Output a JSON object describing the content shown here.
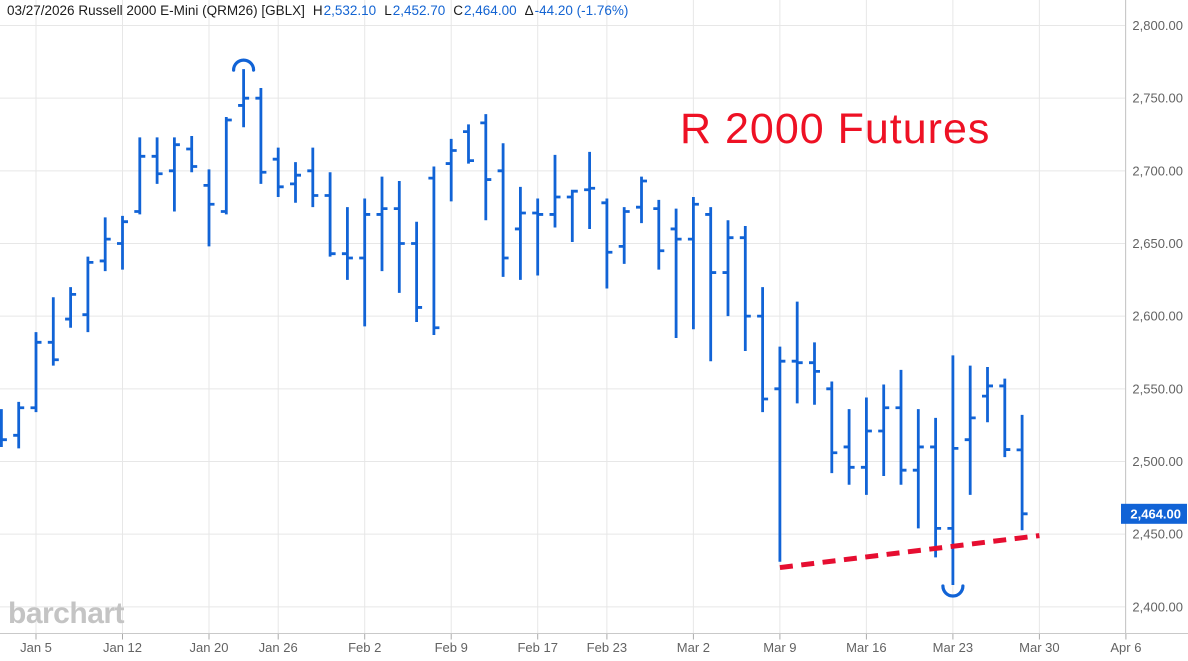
{
  "header": {
    "prefix": "03/27/2026 Russell 2000 E-Mini (QRM26) [GBLX]",
    "high_label": "H",
    "high": "2,532.10",
    "low_label": "L",
    "low": "2,452.70",
    "close_label": "C",
    "close": "2,464.00",
    "change_label": "Δ",
    "change": "-44.20 (-1.76%)"
  },
  "watermark": "barchart",
  "colors": {
    "bar_blue": "#1163d6",
    "price_box_blue": "#1163d6",
    "price_box_text": "#ffffff",
    "annotation_red": "#ee1124",
    "trendline_red": "#e60e31",
    "grid": "#e7e7e7",
    "spine": "#c9c9c9",
    "tick": "#ababab",
    "axis_text": "#636363",
    "header_value_blue": "#1464d2",
    "watermark_gray": "#c4c4c4"
  },
  "chart_data": {
    "type": "bar",
    "subtype": "ohlc-daily-bars",
    "instrument": "Russell 2000 E-Mini (QRM26) [GBLX]",
    "session_date": "03/27/2026",
    "annotation": {
      "text": "R 2000 Futures"
    },
    "grid": true,
    "y_axis_side": "right",
    "y_axis_range": [
      2400,
      2800
    ],
    "last_price": {
      "value": 2464.0,
      "label": "2,464.00"
    },
    "y_ticks": [
      {
        "value": 2800,
        "label": "2,800.00"
      },
      {
        "value": 2750,
        "label": "2,750.00"
      },
      {
        "value": 2700,
        "label": "2,700.00"
      },
      {
        "value": 2650,
        "label": "2,650.00"
      },
      {
        "value": 2600,
        "label": "2,600.00"
      },
      {
        "value": 2550,
        "label": "2,550.00"
      },
      {
        "value": 2500,
        "label": "2,500.00"
      },
      {
        "value": 2450,
        "label": "2,450.00"
      },
      {
        "value": 2400,
        "label": "2,400.00"
      }
    ],
    "x_ticks": [
      {
        "label": "Jan 5",
        "bar_index": 2
      },
      {
        "label": "Jan 12",
        "bar_index": 7
      },
      {
        "label": "Jan 20",
        "bar_index": 12
      },
      {
        "label": "Jan 26",
        "bar_index": 16
      },
      {
        "label": "Feb 2",
        "bar_index": 21
      },
      {
        "label": "Feb 9",
        "bar_index": 26
      },
      {
        "label": "Feb 17",
        "bar_index": 31
      },
      {
        "label": "Feb 23",
        "bar_index": 35
      },
      {
        "label": "Mar 2",
        "bar_index": 40
      },
      {
        "label": "Mar 9",
        "bar_index": 45
      },
      {
        "label": "Mar 16",
        "bar_index": 50
      },
      {
        "label": "Mar 23",
        "bar_index": 55
      },
      {
        "label": "Mar 30",
        "bar_index": 60
      },
      {
        "label": "Apr 6",
        "bar_index": 65
      }
    ],
    "columns": [
      "date",
      "open",
      "high",
      "low",
      "close"
    ],
    "bars": [
      [
        "Dec 31",
        2520,
        2536,
        2510,
        2515
      ],
      [
        "Jan 2",
        2518,
        2541,
        2509,
        2537
      ],
      [
        "Jan 5",
        2537,
        2589,
        2534,
        2582
      ],
      [
        "Jan 6",
        2582,
        2613,
        2566,
        2570
      ],
      [
        "Jan 7",
        2598,
        2620,
        2592,
        2615
      ],
      [
        "Jan 8",
        2601,
        2641,
        2589,
        2637
      ],
      [
        "Jan 9",
        2638,
        2668,
        2631,
        2653
      ],
      [
        "Jan 12",
        2650,
        2669,
        2632,
        2665
      ],
      [
        "Jan 13",
        2672,
        2723,
        2670,
        2710
      ],
      [
        "Jan 14",
        2710,
        2723,
        2691,
        2698
      ],
      [
        "Jan 15",
        2700,
        2723,
        2672,
        2718
      ],
      [
        "Jan 16",
        2715,
        2724,
        2699,
        2703
      ],
      [
        "Jan 20",
        2690,
        2701,
        2648,
        2677
      ],
      [
        "Jan 21",
        2672,
        2737,
        2670,
        2735
      ],
      [
        "Jan 22",
        2745,
        2770,
        2730,
        2750
      ],
      [
        "Jan 23",
        2750,
        2757,
        2691,
        2699
      ],
      [
        "Jan 26",
        2708,
        2716,
        2682,
        2689
      ],
      [
        "Jan 27",
        2691,
        2706,
        2678,
        2697
      ],
      [
        "Jan 28",
        2700,
        2716,
        2675,
        2683
      ],
      [
        "Jan 29",
        2683,
        2699,
        2641,
        2643
      ],
      [
        "Jan 30",
        2643,
        2675,
        2625,
        2640
      ],
      [
        "Feb 2",
        2640,
        2681,
        2593,
        2670
      ],
      [
        "Feb 3",
        2670,
        2696,
        2631,
        2674
      ],
      [
        "Feb 4",
        2674,
        2693,
        2616,
        2650
      ],
      [
        "Feb 5",
        2650,
        2665,
        2596,
        2606
      ],
      [
        "Feb 6",
        2695,
        2703,
        2587,
        2592
      ],
      [
        "Feb 9",
        2705,
        2722,
        2679,
        2714
      ],
      [
        "Feb 10",
        2727,
        2732,
        2705,
        2707
      ],
      [
        "Feb 11",
        2733,
        2739,
        2666,
        2694
      ],
      [
        "Feb 12",
        2700,
        2719,
        2627,
        2640
      ],
      [
        "Feb 13",
        2660,
        2689,
        2625,
        2671
      ],
      [
        "Feb 17",
        2671,
        2681,
        2628,
        2670
      ],
      [
        "Feb 18",
        2670,
        2711,
        2661,
        2682
      ],
      [
        "Feb 19",
        2682,
        2687,
        2651,
        2686
      ],
      [
        "Feb 20",
        2687,
        2713,
        2660,
        2688
      ],
      [
        "Feb 23",
        2678,
        2681,
        2619,
        2644
      ],
      [
        "Feb 24",
        2648,
        2675,
        2636,
        2672
      ],
      [
        "Feb 25",
        2675,
        2696,
        2664,
        2693
      ],
      [
        "Feb 26",
        2674,
        2680,
        2632,
        2645
      ],
      [
        "Feb 27",
        2660,
        2674,
        2585,
        2653
      ],
      [
        "Mar 2",
        2653,
        2682,
        2591,
        2677
      ],
      [
        "Mar 3",
        2670,
        2675,
        2569,
        2630
      ],
      [
        "Mar 4",
        2630,
        2666,
        2600,
        2654
      ],
      [
        "Mar 5",
        2654,
        2662,
        2576,
        2600
      ],
      [
        "Mar 6",
        2600,
        2620,
        2534,
        2543
      ],
      [
        "Mar 9",
        2550,
        2579,
        2431,
        2569
      ],
      [
        "Mar 10",
        2569,
        2610,
        2540,
        2568
      ],
      [
        "Mar 11",
        2568,
        2582,
        2539,
        2562
      ],
      [
        "Mar 12",
        2550,
        2555,
        2492,
        2506
      ],
      [
        "Mar 13",
        2510,
        2536,
        2484,
        2496
      ],
      [
        "Mar 16",
        2496,
        2544,
        2477,
        2521
      ],
      [
        "Mar 17",
        2521,
        2553,
        2490,
        2537
      ],
      [
        "Mar 18",
        2537,
        2563,
        2484,
        2494
      ],
      [
        "Mar 19",
        2494,
        2536,
        2454,
        2510
      ],
      [
        "Mar 20",
        2510,
        2530,
        2434,
        2454
      ],
      [
        "Mar 23",
        2454,
        2573,
        2415,
        2509
      ],
      [
        "Mar 24",
        2515,
        2566,
        2477,
        2530
      ],
      [
        "Mar 25",
        2545,
        2565,
        2527,
        2552
      ],
      [
        "Mar 26",
        2552,
        2557,
        2503,
        2508.2
      ],
      [
        "Mar 27",
        2508,
        2532.1,
        2452.7,
        2464.0
      ]
    ],
    "trendline": {
      "style": "dashed",
      "start": {
        "date": "Mar 9",
        "price": 2427
      },
      "end": {
        "date": "Mar 30",
        "price": 2449
      }
    },
    "markers": [
      {
        "type": "arc-high-marker",
        "date": "Jan 22",
        "price": 2770
      },
      {
        "type": "arc-low-marker",
        "date": "Mar 23",
        "price": 2415
      }
    ]
  }
}
